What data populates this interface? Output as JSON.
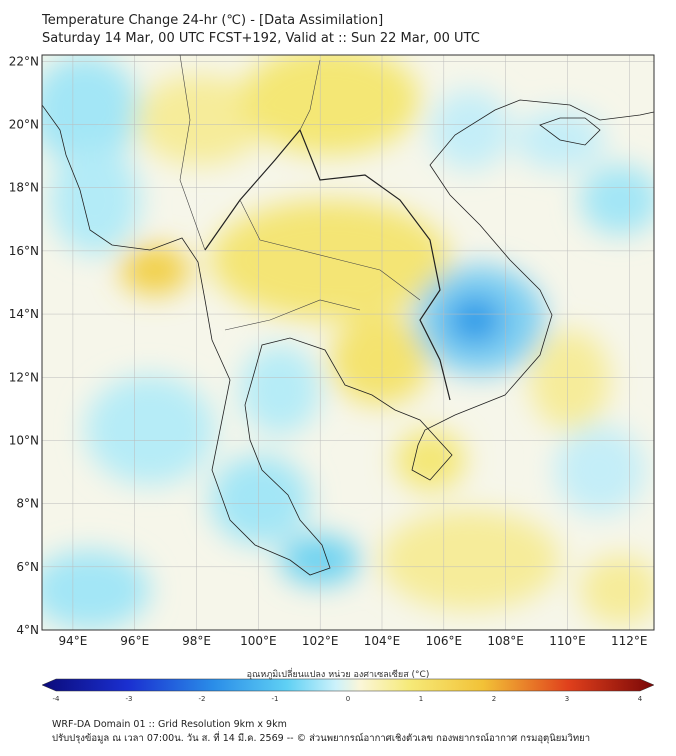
{
  "title": {
    "line1": "Temperature Change 24-hr (℃) - [Data Assimilation]",
    "line2": "Saturday 14 Mar, 00 UTC FCST+192, Valid at :: Sun 22 Mar, 00 UTC"
  },
  "map": {
    "lat_labels": [
      "22°N",
      "20°N",
      "18°N",
      "16°N",
      "14°N",
      "12°N",
      "10°N",
      "8°N",
      "6°N",
      "4°N"
    ],
    "lon_labels": [
      "94°E",
      "96°E",
      "98°E",
      "100°E",
      "102°E",
      "104°E",
      "106°E",
      "108°E",
      "110°E",
      "112°E"
    ],
    "lat_range": [
      4,
      22.2
    ],
    "lon_range": [
      93,
      112.8
    ],
    "grid": true,
    "colors": {
      "neutral": "#f6f6ea",
      "warm": "#f4e774",
      "warm_strong": "#f1c93c",
      "cool": "#a3e6f6",
      "cool_strong": "#2f9ce8"
    }
  },
  "colorbar": {
    "label": "อุณหภูมิเปลี่ยนแปลง หน่วย องศาเซลเซียส (°C)",
    "ticks": [
      "-4",
      "-3",
      "-2",
      "-1",
      "0",
      "1",
      "2",
      "3",
      "4"
    ],
    "min": -4,
    "max": 4
  },
  "footer": {
    "line1": "WRF-DA Domain 01 :: Grid Resolution 9km x 9km",
    "line2": "ปรับปรุงข้อมูล ณ เวลา 07:00น. วัน ส. ที่ 14 มี.ค. 2569 -- © ส่วนพยากรณ์อากาศเชิงตัวเลข กองพยากรณ์อากาศ กรมอุตุนิยมวิทยา"
  }
}
